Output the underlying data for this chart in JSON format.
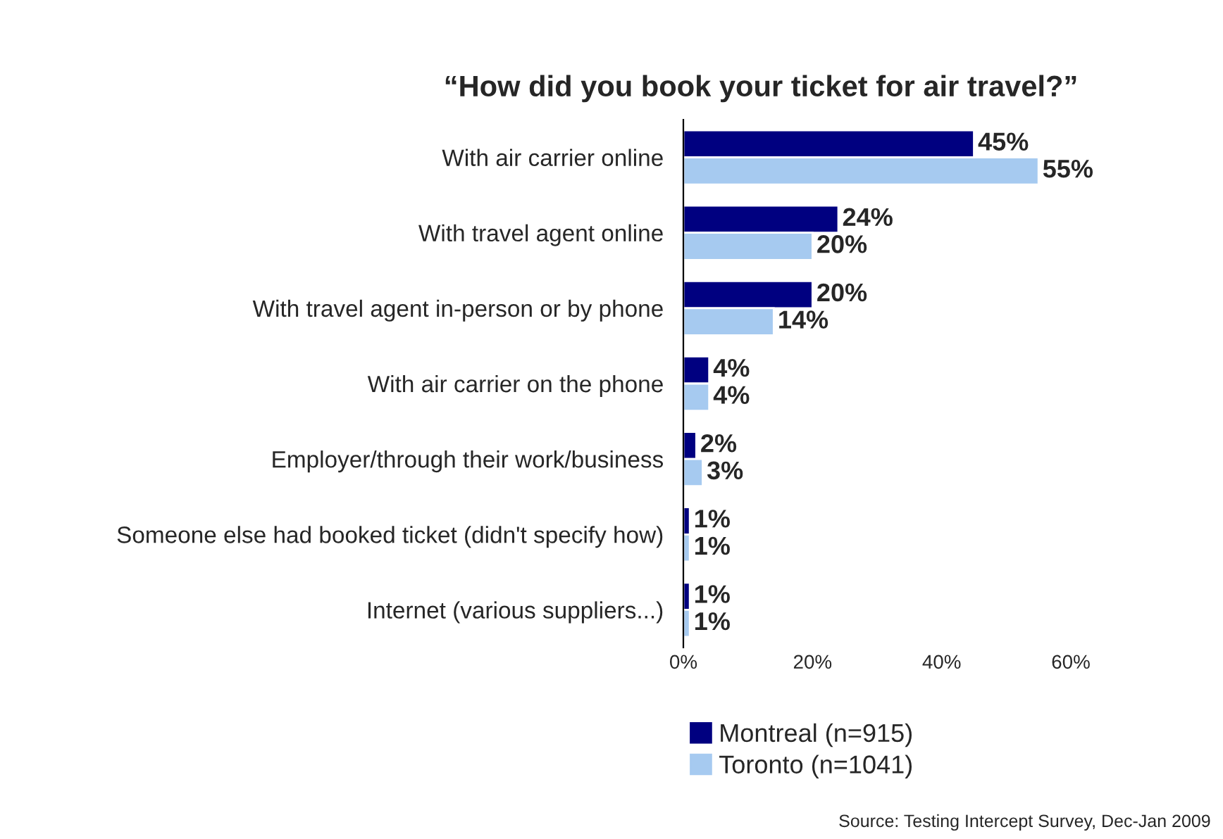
{
  "chart_data": {
    "type": "bar",
    "orientation": "horizontal",
    "title": "“How did you book your ticket for air travel?”",
    "categories": [
      "With air carrier online",
      "With travel agent online",
      "With travel agent in-person or by phone",
      "With air carrier on the phone",
      "Employer/through their work/business",
      "Someone else had booked ticket (didn't specify how)",
      "Internet (various suppliers...)"
    ],
    "series": [
      {
        "name": "Montreal (n=915)",
        "color": "#000080",
        "values": [
          45,
          24,
          20,
          4,
          2,
          1,
          1
        ],
        "value_labels": [
          "45%",
          "24%",
          "20%",
          "4%",
          "2%",
          "1%",
          "1%"
        ]
      },
      {
        "name": "Toronto (n=1041)",
        "color": "#a6caf0",
        "values": [
          55,
          20,
          14,
          4,
          3,
          1,
          1
        ],
        "value_labels": [
          "55%",
          "20%",
          "14%",
          "4%",
          "3%",
          "1%",
          "1%"
        ]
      }
    ],
    "xlim": [
      0,
      60
    ],
    "xticks": [
      {
        "value": 0,
        "label": "0%"
      },
      {
        "value": 20,
        "label": "20%"
      },
      {
        "value": 40,
        "label": "40%"
      },
      {
        "value": 60,
        "label": "60%"
      }
    ],
    "grid": false,
    "legend": "bottom",
    "annotations": [
      "Source: Testing Intercept Survey, Dec-Jan 2009"
    ]
  }
}
